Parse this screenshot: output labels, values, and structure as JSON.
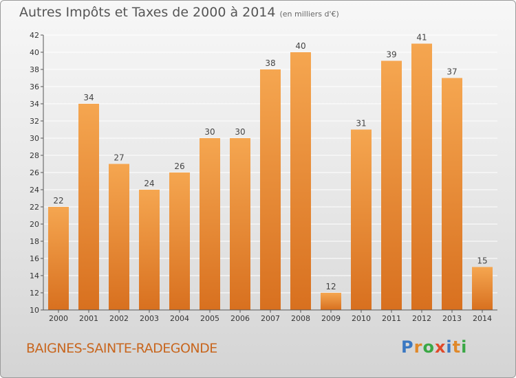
{
  "header": {
    "title": "Autres Impôts et Taxes de 2000 à 2014",
    "unit": "(en milliers d'€)"
  },
  "footer": {
    "commune": "BAIGNES-SAINTE-RADEGONDE",
    "logo_letters": [
      "P",
      "r",
      "o",
      "x",
      "i",
      "t",
      "i"
    ],
    "logo_colors": [
      "#3a78c2",
      "#e0892a",
      "#3aa845",
      "#e04a2a",
      "#3a78c2",
      "#e0892a",
      "#3aa845"
    ]
  },
  "colors": {
    "bar_light": "#f5a650",
    "bar_dark": "#d8701f",
    "axis": "#555555",
    "grid": "#ffffff",
    "commune": "#c8661e"
  },
  "chart_data": {
    "type": "bar",
    "title": "Autres Impôts et Taxes de 2000 à 2014",
    "subtitle": "(en milliers d'€)",
    "xlabel": "",
    "ylabel": "",
    "categories": [
      "2000",
      "2001",
      "2002",
      "2003",
      "2004",
      "2005",
      "2006",
      "2007",
      "2008",
      "2009",
      "2010",
      "2011",
      "2012",
      "2013",
      "2014"
    ],
    "values": [
      22,
      34,
      27,
      24,
      26,
      30,
      30,
      38,
      40,
      12,
      31,
      39,
      41,
      37,
      15
    ],
    "ylim": [
      10,
      42
    ],
    "yticks": [
      10,
      12,
      14,
      16,
      18,
      20,
      22,
      24,
      26,
      28,
      30,
      32,
      34,
      36,
      38,
      40,
      42
    ],
    "grid": true,
    "legend": "none",
    "data_labels": true
  }
}
